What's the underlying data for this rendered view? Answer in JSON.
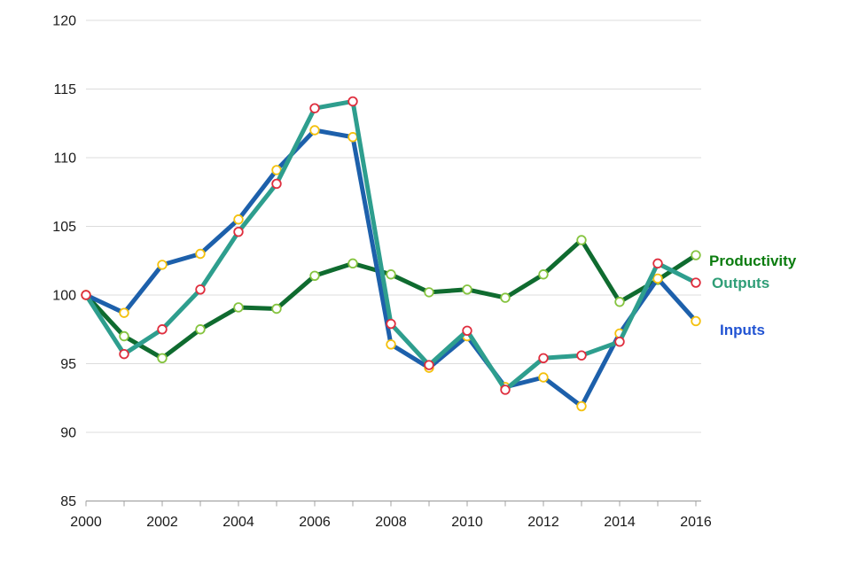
{
  "chart_data": {
    "type": "line",
    "x": [
      2000,
      2001,
      2002,
      2003,
      2004,
      2005,
      2006,
      2007,
      2008,
      2009,
      2010,
      2011,
      2012,
      2013,
      2014,
      2015,
      2016
    ],
    "series": [
      {
        "name": "Productivity",
        "line_color": "#0f6b2f",
        "marker_stroke": "#86c440",
        "marker_fill": "#ffffff",
        "label_color": "#0b7c0f",
        "values": [
          100,
          97.0,
          95.4,
          97.5,
          99.1,
          99.0,
          101.4,
          102.3,
          101.5,
          100.2,
          100.4,
          99.8,
          101.5,
          104.0,
          99.5,
          101.1,
          102.9
        ]
      },
      {
        "name": "Inputs",
        "line_color": "#1d60ab",
        "marker_stroke": "#f4c10e",
        "marker_fill": "#ffffff",
        "label_color": "#2254d3",
        "values": [
          100,
          98.7,
          102.2,
          103.0,
          105.5,
          109.1,
          112.0,
          111.5,
          96.4,
          94.7,
          97.0,
          93.3,
          94.0,
          91.9,
          97.2,
          101.2,
          98.1
        ]
      },
      {
        "name": "Outputs",
        "line_color": "#2e9e8e",
        "marker_stroke": "#df2e3e",
        "marker_fill": "#ffffff",
        "label_color": "#2f9e77",
        "values": [
          100,
          95.7,
          97.5,
          100.4,
          104.6,
          108.1,
          113.6,
          114.1,
          97.9,
          94.9,
          97.4,
          93.1,
          95.4,
          95.6,
          96.6,
          102.3,
          100.9
        ]
      }
    ],
    "title": "",
    "xlabel": "",
    "ylabel": "",
    "ylim": [
      85,
      120
    ],
    "ytick_step": 5,
    "ytick_labels": [
      "85",
      "90",
      "95",
      "100",
      "105",
      "110",
      "115",
      "120"
    ],
    "xtick_label_step": 2,
    "xtick_labels": [
      "2000",
      "2002",
      "2004",
      "2006",
      "2008",
      "2010",
      "2012",
      "2014",
      "2016"
    ],
    "grid": "horizontal",
    "legend_position": "right of line ends",
    "axis_color": "#a3a3a3",
    "grid_color": "#dcdcdc",
    "tick_label_color": "#1a1a1a"
  },
  "legend": {
    "productivity_label": "Productivity",
    "outputs_label": "Outputs",
    "inputs_label": "Inputs"
  }
}
